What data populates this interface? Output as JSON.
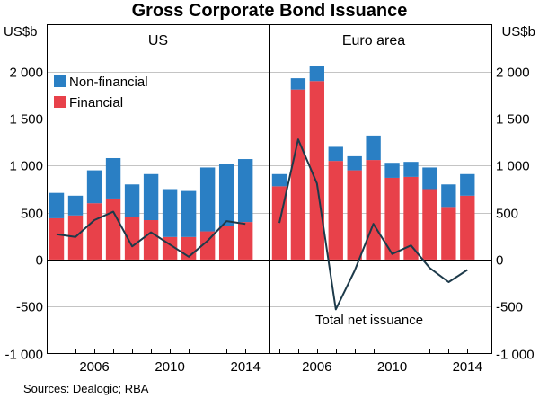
{
  "chart_data": {
    "type": "bar",
    "title": "Gross Corporate Bond Issuance",
    "units_left": "US$b",
    "units_right": "US$b",
    "ylim": [
      -1000,
      2500
    ],
    "yticks": [
      -1000,
      -500,
      0,
      500,
      1000,
      1500,
      2000
    ],
    "ytick_labels": [
      "-1 000",
      "-500",
      "0",
      "500",
      "1 000",
      "1 500",
      "2 000"
    ],
    "x_tick_labels": [
      "2006",
      "2010",
      "2014"
    ],
    "legend": {
      "non_financial": "Non-financial",
      "financial": "Financial"
    },
    "colors": {
      "financial": "#e8414a",
      "non_financial": "#2a7fc4",
      "line": "#1d3a4a"
    },
    "source": "Sources:   Dealogic; RBA",
    "panels": [
      {
        "name": "US",
        "years": [
          2004,
          2005,
          2006,
          2007,
          2008,
          2009,
          2010,
          2011,
          2012,
          2013,
          2014
        ],
        "series": [
          {
            "name": "Financial",
            "values": [
              440,
              470,
              600,
              650,
              450,
              420,
              240,
              240,
              300,
              360,
              400
            ]
          },
          {
            "name": "Non-financial",
            "values": [
              270,
              210,
              350,
              430,
              350,
              490,
              510,
              490,
              680,
              660,
              670
            ]
          }
        ],
        "net_issuance": [
          270,
          240,
          420,
          510,
          140,
          290,
          160,
          30,
          200,
          410,
          380
        ]
      },
      {
        "name": "Euro area",
        "years": [
          2004,
          2005,
          2006,
          2007,
          2008,
          2009,
          2010,
          2011,
          2012,
          2013,
          2014
        ],
        "series": [
          {
            "name": "Financial",
            "values": [
              780,
              1810,
              1900,
              1050,
              950,
              1060,
              870,
              880,
              750,
              560,
              680
            ]
          },
          {
            "name": "Non-financial",
            "values": [
              130,
              120,
              160,
              150,
              150,
              260,
              160,
              160,
              230,
              240,
              230
            ]
          }
        ],
        "net_issuance": [
          390,
          1280,
          810,
          -530,
          -120,
          380,
          60,
          150,
          -90,
          -240,
          -110
        ],
        "line_label": "Total net issuance"
      }
    ]
  }
}
